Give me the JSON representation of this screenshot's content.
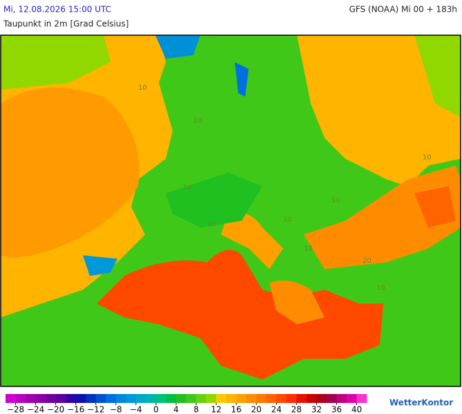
{
  "header": {
    "valid_time": "Mi, 12.08.2026 15:00 UTC",
    "model_run": "GFS (NOAA) Mi 00 + 183h",
    "parameter": "Taupunkt in 2m [Grad Celsius]"
  },
  "map": {
    "contour_labels": [
      "10",
      "10",
      "10",
      "10",
      "10",
      "10",
      "10",
      "20",
      "10",
      "10"
    ]
  },
  "legend": {
    "range": [
      -30,
      42
    ],
    "colors": [
      "#d000d0",
      "#b800c0",
      "#a000b0",
      "#8800a8",
      "#7000a0",
      "#5800a0",
      "#3000a8",
      "#1010b0",
      "#0030c0",
      "#0050d0",
      "#0070e0",
      "#0088e0",
      "#0098d8",
      "#00a8c8",
      "#00b4b0",
      "#00c080",
      "#00c040",
      "#20c020",
      "#40c818",
      "#68d010",
      "#90d800",
      "#ffc800",
      "#ffb400",
      "#ffa000",
      "#ff8c00",
      "#ff7800",
      "#ff6400",
      "#ff4800",
      "#ff2c00",
      "#e81000",
      "#cc0000",
      "#a80018",
      "#a00050",
      "#c00080",
      "#e000a8",
      "#ff30d0"
    ],
    "ticks": [
      {
        "value": -28,
        "label": "−28"
      },
      {
        "value": -24,
        "label": "−24"
      },
      {
        "value": -20,
        "label": "−20"
      },
      {
        "value": -16,
        "label": "−16"
      },
      {
        "value": -12,
        "label": "−12"
      },
      {
        "value": -8,
        "label": "−8"
      },
      {
        "value": -4,
        "label": "−4"
      },
      0,
      4,
      8,
      12,
      16,
      20,
      24,
      28,
      32,
      36,
      40
    ]
  },
  "logo": "WetterKontor"
}
